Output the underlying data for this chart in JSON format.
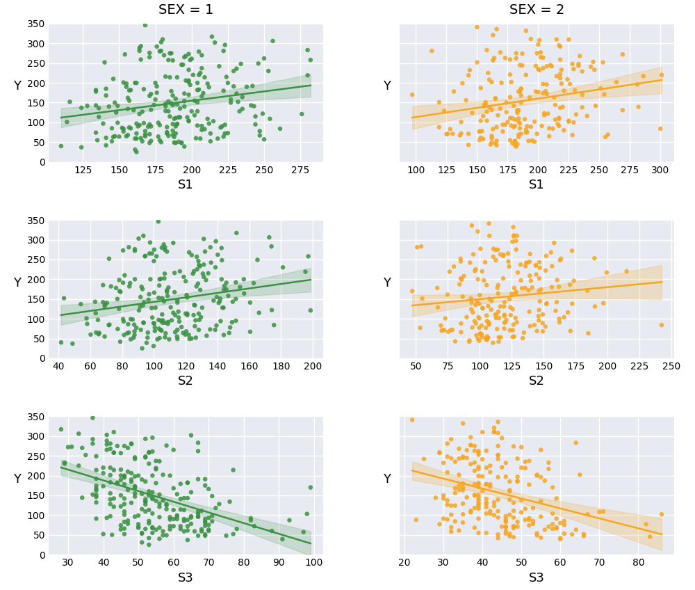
{
  "title_sex1": "SEX = 1",
  "title_sex2": "SEX = 2",
  "attributes": [
    "S1",
    "S2",
    "S3"
  ],
  "ylabel": "Y",
  "color_sex1": "#3a9142",
  "color_sex2": "#f5a623",
  "scatter_alpha": 0.85,
  "scatter_size": 22,
  "bg_color": "#e8eaf2",
  "grid_color": "white",
  "grid_linewidth": 1.0,
  "ci_alpha_sex1": 0.18,
  "ci_alpha_sex2": 0.22,
  "ci_color_sex1": "#3a9142",
  "ci_color_sex2": "#f5a623",
  "ylim": [
    0,
    350
  ],
  "yticks": [
    0,
    50,
    100,
    150,
    200,
    250,
    300,
    350
  ],
  "figsize": [
    10.0,
    8.48
  ],
  "dpi": 100,
  "title_fontsize": 14,
  "label_fontsize": 13,
  "tick_fontsize": 10,
  "line_width": 1.8
}
